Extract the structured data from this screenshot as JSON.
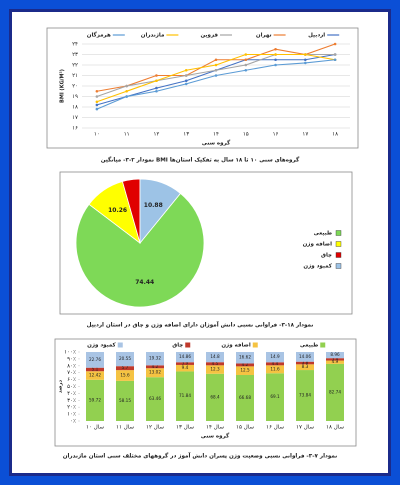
{
  "chart_data": [
    {
      "type": "line",
      "title": "نمودار ۲-۳- میانگین BMI گروه‌های سنی ۱۰ تا ۱۸ سال به تفکیک استان‌ها",
      "y_label": "BMI (KG/M²)",
      "x_label": "گروه سنی",
      "categories": [
        "۱۰",
        "۱۱",
        "۱۲",
        "۱۳",
        "۱۴",
        "۱۵",
        "۱۶",
        "۱۷",
        "۱۸"
      ],
      "series": [
        {
          "name": "اردبیل",
          "color": "#4472c4",
          "values": [
            18.2,
            19,
            19.8,
            20.5,
            21.5,
            22.5,
            22.5,
            22.5,
            23
          ]
        },
        {
          "name": "تهران",
          "color": "#ed7d31",
          "values": [
            19.5,
            20,
            21,
            21,
            22.5,
            22.5,
            23.5,
            23,
            24
          ]
        },
        {
          "name": "قزوین",
          "color": "#a5a5a5",
          "values": [
            19,
            20,
            20.5,
            21,
            21.5,
            22,
            23,
            23,
            23
          ]
        },
        {
          "name": "مازندران",
          "color": "#ffc000",
          "values": [
            18.5,
            19.5,
            20.5,
            21.5,
            22,
            23,
            23,
            23,
            22.5
          ]
        },
        {
          "name": "هرمزگان",
          "color": "#5b9bd5",
          "values": [
            17.8,
            19,
            19.5,
            20.2,
            21,
            21.5,
            22,
            22.2,
            22.5
          ]
        }
      ],
      "ylim": [
        16,
        24
      ],
      "yticks": [
        {
          "value": 16,
          "label": "۱۶"
        },
        {
          "value": 17,
          "label": "۱۷"
        },
        {
          "value": 18,
          "label": "۱۸"
        },
        {
          "value": 19,
          "label": "۱۹"
        },
        {
          "value": 20,
          "label": "۲۰"
        },
        {
          "value": 21,
          "label": "۲۱"
        },
        {
          "value": 22,
          "label": "۲۲"
        },
        {
          "value": 23,
          "label": "۲۳"
        },
        {
          "value": 24,
          "label": "۲۴"
        }
      ],
      "grid": true
    },
    {
      "type": "pie",
      "title": "نمودار ۱۸-۳- فراوانی نسبی دانش آموزان دارای اضافه وزن و چاق در استان اردبیل",
      "categories": [
        "طبیعی",
        "اضافه وزن",
        "چاق",
        "کمبود وزن"
      ],
      "values": [
        74.44,
        10.26,
        4.42,
        10.88
      ],
      "value_labels": [
        "74.44",
        "10.26",
        null,
        "10.88"
      ],
      "colors": [
        "#7ed957",
        "#ffff00",
        "#e00000",
        "#9dc3e6"
      ]
    },
    {
      "type": "bar",
      "stacked": true,
      "title": "نمودار ۷-۳- فراوانی نسبی وضعیت وزن پسران دانش آموز در گروههای مختلف سنی استان مازندران",
      "y_label": "درصد",
      "x_label": "گروه سنی",
      "categories": [
        "۱۰ سال",
        "۱۱ سال",
        "۱۲ سال",
        "۱۳ سال",
        "۱۴ سال",
        "۱۵ سال",
        "۱۶ سال",
        "۱۷ سال",
        "۱۸ سال"
      ],
      "series": [
        {
          "name": "طبیعی",
          "color": "#92d050",
          "values": [
            59.72,
            58.15,
            63.46,
            71.84,
            68.4,
            66.68,
            69.1,
            73.84,
            82.74
          ]
        },
        {
          "name": "اضافه وزن",
          "color": "#f5c342",
          "values": [
            12.42,
            15.6,
            13.02,
            9.4,
            12.3,
            12.5,
            11.6,
            8.3,
            4.9
          ]
        },
        {
          "name": "چاق",
          "color": "#c0392b",
          "values": [
            5.1,
            5.7,
            4.2,
            3.9,
            4.5,
            4.2,
            4.4,
            3.8,
            3.4
          ]
        },
        {
          "name": "کمبود وزن",
          "color": "#a9c4e4",
          "values": [
            22.76,
            20.55,
            19.32,
            14.86,
            14.8,
            16.62,
            14.9,
            14.06,
            8.96
          ]
        }
      ],
      "ylim": [
        0,
        100
      ],
      "yticks": [
        {
          "value": 0,
          "label": "۰٪"
        },
        {
          "value": 10,
          "label": "۱۰٪"
        },
        {
          "value": 20,
          "label": "۲۰٪"
        },
        {
          "value": 30,
          "label": "۳۰٪"
        },
        {
          "value": 40,
          "label": "۴۰٪"
        },
        {
          "value": 50,
          "label": "۵۰٪"
        },
        {
          "value": 60,
          "label": "۶۰٪"
        },
        {
          "value": 70,
          "label": "۷۰٪"
        },
        {
          "value": 80,
          "label": "۸۰٪"
        },
        {
          "value": 90,
          "label": "۹۰٪"
        },
        {
          "value": 100,
          "label": "۱۰۰٪"
        }
      ]
    }
  ]
}
